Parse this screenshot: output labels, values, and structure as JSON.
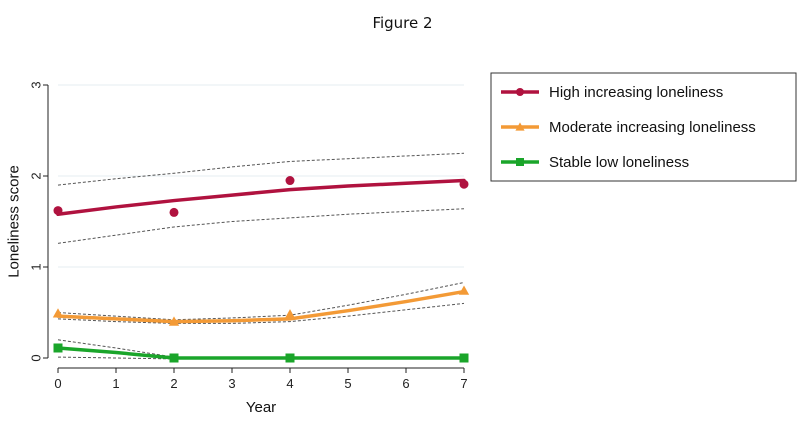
{
  "figure_label": "Figure 2",
  "chart_data": {
    "type": "line",
    "title": "",
    "xlabel": "Year",
    "ylabel": "Loneliness score",
    "xlim": [
      0,
      7
    ],
    "ylim": [
      0,
      3
    ],
    "x_ticks": [
      0,
      1,
      2,
      3,
      4,
      5,
      6,
      7
    ],
    "y_ticks": [
      0,
      1,
      2,
      3
    ],
    "grid": "horizontal",
    "legend_position": "right",
    "series": [
      {
        "name": "High increasing loneliness",
        "color": "#b0123f",
        "marker": "circle",
        "fitted": {
          "x": [
            0,
            1,
            2,
            3,
            4,
            5,
            6,
            7
          ],
          "y": [
            1.58,
            1.66,
            1.73,
            1.79,
            1.85,
            1.89,
            1.92,
            1.95
          ]
        },
        "observed": {
          "x": [
            0,
            2,
            4,
            7
          ],
          "y": [
            1.62,
            1.6,
            1.95,
            1.91
          ]
        },
        "ci_upper": {
          "x": [
            0,
            1,
            2,
            3,
            4,
            5,
            6,
            7
          ],
          "y": [
            1.9,
            1.97,
            2.03,
            2.1,
            2.16,
            2.19,
            2.22,
            2.25
          ]
        },
        "ci_lower": {
          "x": [
            0,
            1,
            2,
            3,
            4,
            5,
            6,
            7
          ],
          "y": [
            1.26,
            1.35,
            1.44,
            1.5,
            1.54,
            1.58,
            1.61,
            1.64
          ]
        }
      },
      {
        "name": "Moderate increasing loneliness",
        "color": "#f39a36",
        "marker": "triangle",
        "fitted": {
          "x": [
            0,
            1,
            2,
            3,
            4,
            5,
            6,
            7
          ],
          "y": [
            0.46,
            0.43,
            0.4,
            0.41,
            0.43,
            0.52,
            0.62,
            0.73
          ]
        },
        "observed": {
          "x": [
            0,
            2,
            4,
            7
          ],
          "y": [
            0.49,
            0.4,
            0.48,
            0.74
          ]
        },
        "ci_upper": {
          "x": [
            0,
            1,
            2,
            3,
            4,
            5,
            6,
            7
          ],
          "y": [
            0.5,
            0.46,
            0.42,
            0.44,
            0.47,
            0.58,
            0.7,
            0.83
          ]
        },
        "ci_lower": {
          "x": [
            0,
            1,
            2,
            3,
            4,
            5,
            6,
            7
          ],
          "y": [
            0.43,
            0.4,
            0.38,
            0.38,
            0.4,
            0.46,
            0.53,
            0.6
          ]
        }
      },
      {
        "name": "Stable low loneliness",
        "color": "#1aa52a",
        "marker": "square",
        "fitted": {
          "x": [
            0,
            1,
            2,
            3,
            4,
            5,
            6,
            7
          ],
          "y": [
            0.11,
            0.06,
            0.0,
            0.0,
            0.0,
            0.0,
            0.0,
            0.0
          ]
        },
        "observed": {
          "x": [
            0,
            2,
            4,
            7
          ],
          "y": [
            0.11,
            0.0,
            0.0,
            0.0
          ]
        },
        "ci_upper": {
          "x": [
            0,
            1,
            2,
            3,
            4,
            5,
            6,
            7
          ],
          "y": [
            0.2,
            0.11,
            0.01,
            0.01,
            0.01,
            0.01,
            0.01,
            0.01
          ]
        },
        "ci_lower": {
          "x": [
            0,
            1,
            2,
            3,
            4,
            5,
            6,
            7
          ],
          "y": [
            0.01,
            0.0,
            -0.01,
            -0.01,
            -0.01,
            -0.01,
            -0.01,
            -0.01
          ]
        }
      }
    ]
  }
}
